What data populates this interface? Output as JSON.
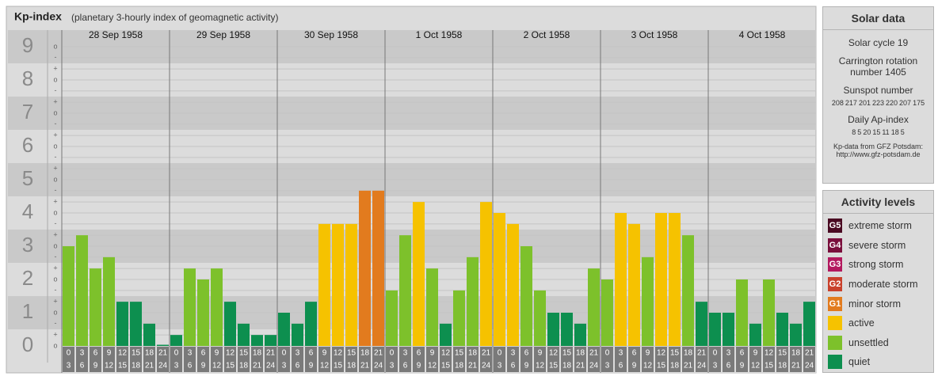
{
  "chart_data": {
    "type": "bar",
    "title": "Kp-index",
    "subtitle": "(planetary 3-hourly index of geomagnetic activity)",
    "days": [
      "28 Sep 1958",
      "29 Sep 1958",
      "30 Sep 1958",
      "1 Oct 1958",
      "2 Oct 1958",
      "3 Oct 1958",
      "4 Oct 1958"
    ],
    "hours": [
      "0",
      "3",
      "6",
      "9",
      "12",
      "15",
      "18",
      "21",
      "24"
    ],
    "values": [
      3,
      3.33,
      2.33,
      2.67,
      1.33,
      1.33,
      0.67,
      0,
      0.33,
      2.33,
      2,
      2.33,
      1.33,
      0.67,
      0.33,
      0.33,
      1,
      0.67,
      1.33,
      3.67,
      3.67,
      3.67,
      4.67,
      4.67,
      1.67,
      3.33,
      4.33,
      2.33,
      0.67,
      1.67,
      2.67,
      4.33,
      4,
      3.67,
      3,
      1.67,
      1,
      1,
      0.67,
      2.33,
      2,
      4,
      3.67,
      2.67,
      4,
      4,
      3.33,
      1.33,
      1,
      1,
      2,
      0.67,
      2,
      1,
      0.67,
      1.33
    ],
    "colors": [
      "#7dc12b",
      "#7dc12b",
      "#7dc12b",
      "#7dc12b",
      "#0d8f4f",
      "#0d8f4f",
      "#0d8f4f",
      "#0d8f4f",
      "#0d8f4f",
      "#7dc12b",
      "#7dc12b",
      "#7dc12b",
      "#0d8f4f",
      "#0d8f4f",
      "#0d8f4f",
      "#0d8f4f",
      "#0d8f4f",
      "#0d8f4f",
      "#0d8f4f",
      "#f6c200",
      "#f6c200",
      "#f6c200",
      "#e27b1e",
      "#e27b1e",
      "#7dc12b",
      "#7dc12b",
      "#f6c200",
      "#7dc12b",
      "#0d8f4f",
      "#7dc12b",
      "#7dc12b",
      "#f6c200",
      "#f6c200",
      "#f6c200",
      "#7dc12b",
      "#7dc12b",
      "#0d8f4f",
      "#0d8f4f",
      "#0d8f4f",
      "#7dc12b",
      "#7dc12b",
      "#f6c200",
      "#f6c200",
      "#7dc12b",
      "#f6c200",
      "#f6c200",
      "#7dc12b",
      "#0d8f4f",
      "#0d8f4f",
      "#0d8f4f",
      "#7dc12b",
      "#0d8f4f",
      "#7dc12b",
      "#0d8f4f",
      "#0d8f4f",
      "#0d8f4f"
    ],
    "ylim": [
      -0.5,
      9.5
    ],
    "yticks": [
      0,
      1,
      2,
      3,
      4,
      5,
      6,
      7,
      8,
      9
    ],
    "minor_ticks": [
      {
        "value": 0,
        "label": "o"
      },
      {
        "value": 0.33,
        "label": "+"
      },
      {
        "value": 0.67,
        "label": "-"
      },
      {
        "value": 1,
        "label": "o"
      },
      {
        "value": 1.33,
        "label": "+"
      },
      {
        "value": 1.67,
        "label": "-"
      },
      {
        "value": 2,
        "label": "o"
      },
      {
        "value": 2.33,
        "label": "+"
      },
      {
        "value": 2.67,
        "label": "-"
      },
      {
        "value": 3,
        "label": "o"
      },
      {
        "value": 3.33,
        "label": "+"
      },
      {
        "value": 3.67,
        "label": "-"
      },
      {
        "value": 4,
        "label": "o"
      },
      {
        "value": 4.33,
        "label": "+"
      },
      {
        "value": 4.67,
        "label": "-"
      },
      {
        "value": 5,
        "label": "o"
      },
      {
        "value": 5.33,
        "label": "+"
      },
      {
        "value": 5.67,
        "label": "-"
      },
      {
        "value": 6,
        "label": "o"
      },
      {
        "value": 6.33,
        "label": "+"
      },
      {
        "value": 6.67,
        "label": "-"
      },
      {
        "value": 7,
        "label": "o"
      },
      {
        "value": 7.33,
        "label": "+"
      },
      {
        "value": 7.67,
        "label": "-"
      },
      {
        "value": 8,
        "label": "o"
      },
      {
        "value": 8.33,
        "label": "+"
      },
      {
        "value": 8.67,
        "label": "-"
      },
      {
        "value": 9,
        "label": "o"
      }
    ],
    "grid": true
  },
  "solar_data": {
    "title": "Solar data",
    "cycle": "Solar cycle 19",
    "carrington": "Carrington rotation number 1405",
    "sunspot_title": "Sunspot number",
    "sunspot_numbers": [
      208,
      217,
      201,
      223,
      220,
      207,
      175
    ],
    "ap_title": "Daily Ap-index",
    "ap_values": [
      8,
      5,
      20,
      15,
      11,
      18,
      5
    ],
    "source": "Kp-data from GFZ Potsdam:",
    "url": "http://www.gfz-potsdam.de"
  },
  "activity_levels": {
    "title": "Activity levels",
    "items": [
      {
        "badge": "G5",
        "label": "extreme storm",
        "color": "#4a0a22"
      },
      {
        "badge": "G4",
        "label": "severe storm",
        "color": "#7a0f3c"
      },
      {
        "badge": "G3",
        "label": "strong storm",
        "color": "#b3195e"
      },
      {
        "badge": "G2",
        "label": "moderate storm",
        "color": "#c9412c"
      },
      {
        "badge": "G1",
        "label": "minor storm",
        "color": "#e27b1e"
      },
      {
        "label": "active",
        "color": "#f6c200"
      },
      {
        "label": "unsettled",
        "color": "#7dc12b"
      },
      {
        "label": "quiet",
        "color": "#0d8f4f"
      }
    ]
  }
}
